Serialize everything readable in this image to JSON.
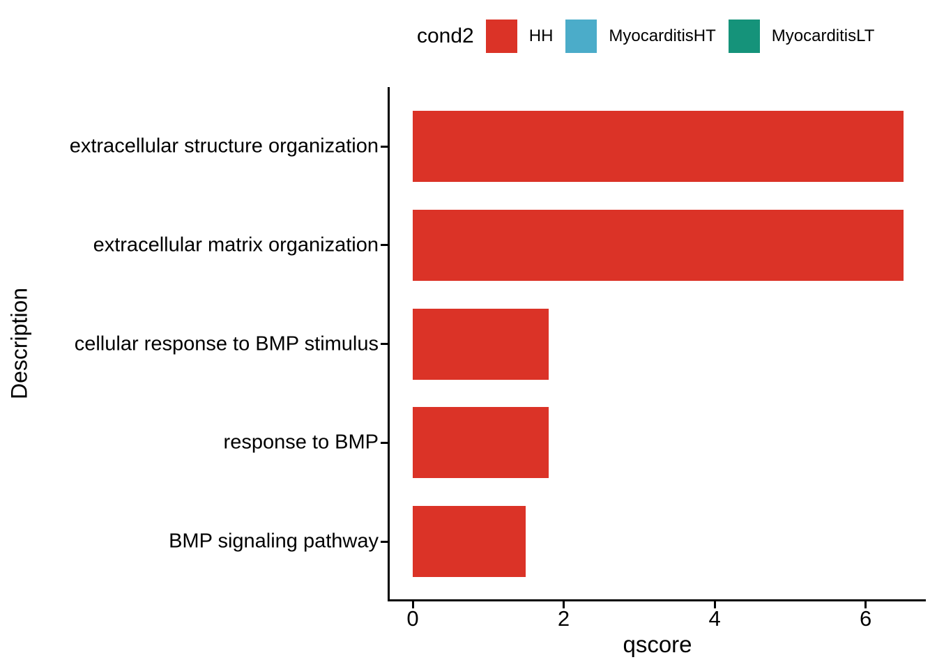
{
  "legend": {
    "title": "cond2",
    "items": [
      {
        "label": "HH",
        "color": "#DB3327"
      },
      {
        "label": "MyocarditisHT",
        "color": "#4BACC9"
      },
      {
        "label": "MyocarditisLT",
        "color": "#15937A"
      }
    ]
  },
  "chart_data": {
    "type": "bar",
    "orientation": "horizontal",
    "title": "",
    "xlabel": "qscore",
    "ylabel": "Description",
    "categories": [
      "extracellular structure organization",
      "extracellular matrix organization",
      "cellular response to BMP stimulus",
      "response to BMP",
      "BMP signaling pathway"
    ],
    "series": [
      {
        "name": "HH",
        "color": "#DB3327",
        "values": [
          6.5,
          6.5,
          1.8,
          1.8,
          1.5
        ]
      }
    ],
    "xlim": [
      -0.33,
      6.82
    ],
    "x_ticks": [
      0,
      2,
      4,
      6
    ],
    "grid": false,
    "legend_position": "top",
    "axis_color": "#000000",
    "text_color": "#000000",
    "background": "#ffffff"
  }
}
